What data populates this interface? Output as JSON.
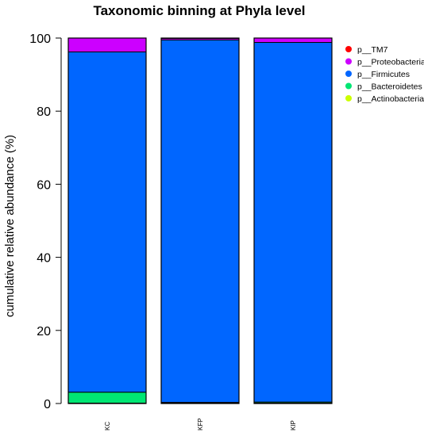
{
  "chart_data": {
    "type": "bar",
    "stacked": true,
    "title": "Taxonomic binning at Phyla level",
    "xlabel": "",
    "ylabel": "cumulative relative abundance (%)",
    "ylim": [
      0,
      100
    ],
    "yticks": [
      "0",
      "20",
      "40",
      "60",
      "80",
      "100"
    ],
    "categories": [
      "KC",
      "KFP",
      "KIP"
    ],
    "series": [
      {
        "name": "p__Actinobacteria",
        "color": "#ccff00",
        "values": [
          0.1,
          0.1,
          0.1
        ]
      },
      {
        "name": "p__Bacteroidetes",
        "color": "#00e673",
        "values": [
          3.0,
          0.2,
          0.3
        ]
      },
      {
        "name": "p__Firmicutes",
        "color": "#0066ff",
        "values": [
          93.1,
          99.2,
          98.4
        ]
      },
      {
        "name": "p__Proteobacteria",
        "color": "#cc00ff",
        "values": [
          3.8,
          0.4,
          1.2
        ]
      },
      {
        "name": "p__TM7",
        "color": "#ff0000",
        "values": [
          0.0,
          0.1,
          0.0
        ]
      }
    ],
    "legend": {
      "position": "top-right",
      "entries": [
        "p__TM7",
        "p__Proteobacteria",
        "p__Firmicutes",
        "p__Bacteroidetes",
        "p__Actinobacteria"
      ]
    },
    "grid": false
  }
}
